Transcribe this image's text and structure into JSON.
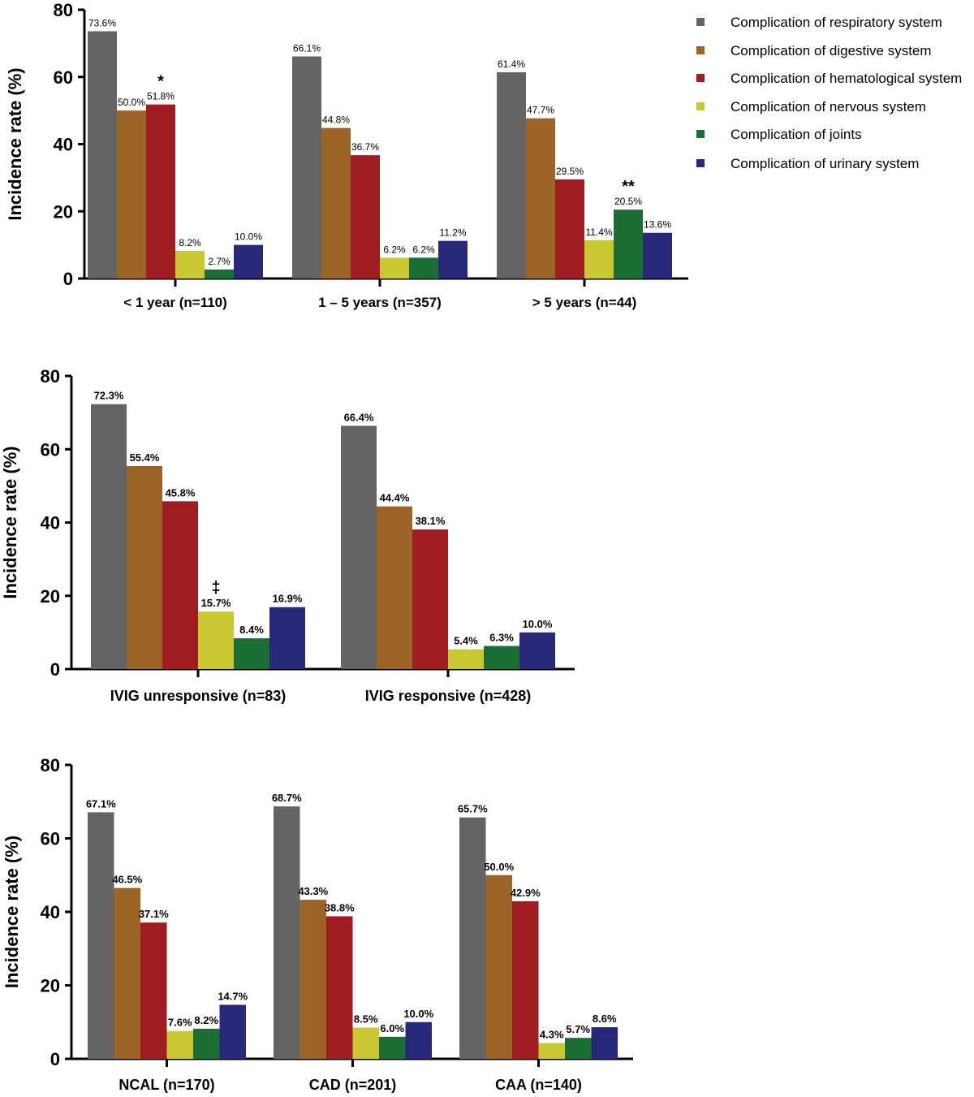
{
  "colors": [
    "#646464",
    "#9B6428",
    "#A01C23",
    "#C8C832",
    "#1C6E37",
    "#282878"
  ],
  "legend": {
    "placement": "top-right",
    "entries": [
      "Complication of respiratory system",
      "Complication of digestive system",
      "Complication of hematological system",
      "Complication of nervous system",
      "Complication of joints",
      "Complication of urinary system"
    ]
  },
  "chart_data": [
    {
      "type": "bar",
      "ylabel": "Incidence rate (%)",
      "ylim": [
        0,
        80
      ],
      "yticks": [
        "0",
        "20",
        "40",
        "60",
        "80"
      ],
      "categories": [
        "< 1 year (n=110)",
        "1 – 5 years (n=357)",
        "> 5 years (n=44)"
      ],
      "series": [
        {
          "name": "Complication of respiratory system",
          "values": [
            73.6,
            66.1,
            61.4
          ],
          "labels": [
            "73.6%",
            "66.1%",
            "61.4%"
          ]
        },
        {
          "name": "Complication of digestive system",
          "values": [
            50.0,
            44.8,
            47.7
          ],
          "labels": [
            "50.0%",
            "44.8%",
            "47.7%"
          ]
        },
        {
          "name": "Complication of hematological system",
          "values": [
            51.8,
            36.7,
            29.5
          ],
          "labels": [
            "51.8%",
            "36.7%",
            "29.5%"
          ]
        },
        {
          "name": "Complication of nervous system",
          "values": [
            8.2,
            6.2,
            11.4
          ],
          "labels": [
            "8.2%",
            "6.2%",
            "11.4%"
          ]
        },
        {
          "name": "Complication of joints",
          "values": [
            2.7,
            6.2,
            20.5
          ],
          "labels": [
            "2.7%",
            "6.2%",
            "20.5%"
          ]
        },
        {
          "name": "Complication of urinary system",
          "values": [
            10.0,
            11.2,
            13.6
          ],
          "labels": [
            "10.0%",
            "11.2%",
            "13.6%"
          ]
        }
      ],
      "annotations": [
        {
          "category": 0,
          "series": 2,
          "text": "*"
        },
        {
          "category": 2,
          "series": 4,
          "text": "**"
        }
      ]
    },
    {
      "type": "bar",
      "ylabel": "Incidence rate (%)",
      "ylim": [
        0,
        80
      ],
      "yticks": [
        "0",
        "20",
        "40",
        "60",
        "80"
      ],
      "categories": [
        "IVIG unresponsive (n=83)",
        "IVIG responsive (n=428)"
      ],
      "series": [
        {
          "name": "Complication of respiratory system",
          "values": [
            72.3,
            66.4
          ],
          "labels": [
            "72.3%",
            "66.4%"
          ]
        },
        {
          "name": "Complication of digestive system",
          "values": [
            55.4,
            44.4
          ],
          "labels": [
            "55.4%",
            "44.4%"
          ]
        },
        {
          "name": "Complication of hematological system",
          "values": [
            45.8,
            38.1
          ],
          "labels": [
            "45.8%",
            "38.1%"
          ]
        },
        {
          "name": "Complication of nervous system",
          "values": [
            15.7,
            5.4
          ],
          "labels": [
            "15.7%",
            "5.4%"
          ]
        },
        {
          "name": "Complication of joints",
          "values": [
            8.4,
            6.3
          ],
          "labels": [
            "8.4%",
            "6.3%"
          ]
        },
        {
          "name": "Complication of urinary system",
          "values": [
            16.9,
            10.0
          ],
          "labels": [
            "16.9%",
            "10.0%"
          ]
        }
      ],
      "annotations": [
        {
          "category": 0,
          "series": 3,
          "text": "‡"
        }
      ]
    },
    {
      "type": "bar",
      "ylabel": "Incidence rate (%)",
      "ylim": [
        0,
        80
      ],
      "yticks": [
        "0",
        "20",
        "40",
        "60",
        "80"
      ],
      "categories": [
        "NCAL (n=170)",
        "CAD (n=201)",
        "CAA (n=140)"
      ],
      "series": [
        {
          "name": "Complication of respiratory system",
          "values": [
            67.1,
            68.7,
            65.7
          ],
          "labels": [
            "67.1%",
            "68.7%",
            "65.7%"
          ]
        },
        {
          "name": "Complication of digestive system",
          "values": [
            46.5,
            43.3,
            50.0
          ],
          "labels": [
            "46.5%",
            "43.3%",
            "50.0%"
          ]
        },
        {
          "name": "Complication of hematological system",
          "values": [
            37.1,
            38.8,
            42.9
          ],
          "labels": [
            "37.1%",
            "38.8%",
            "42.9%"
          ]
        },
        {
          "name": "Complication of nervous system",
          "values": [
            7.6,
            8.5,
            4.3
          ],
          "labels": [
            "7.6%",
            "8.5%",
            "4.3%"
          ]
        },
        {
          "name": "Complication of joints",
          "values": [
            8.2,
            6.0,
            5.7
          ],
          "labels": [
            "8.2%",
            "6.0%",
            "5.7%"
          ]
        },
        {
          "name": "Complication of urinary system",
          "values": [
            14.7,
            10.0,
            8.6
          ],
          "labels": [
            "14.7%",
            "10.0%",
            "8.6%"
          ]
        }
      ],
      "annotations": []
    }
  ]
}
